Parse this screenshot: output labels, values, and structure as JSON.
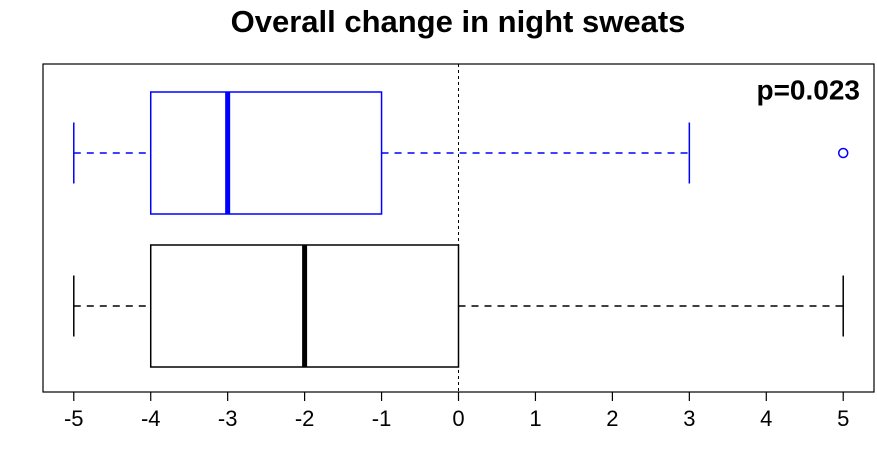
{
  "chart_data": {
    "type": "boxplot",
    "title": "Overall change in night sweats",
    "annotation": "p=0.023",
    "orientation": "horizontal",
    "boxes": [
      {
        "color": "#0000ff",
        "min": -5,
        "q1": -4,
        "median": -3,
        "q3": -1,
        "max": 3,
        "outliers": [
          5
        ]
      },
      {
        "color": "#000000",
        "min": -5,
        "q1": -4,
        "median": -2,
        "q3": 0,
        "max": 5,
        "outliers": []
      }
    ],
    "xlim": [
      -5.4,
      5.4
    ],
    "xticks": [
      -5,
      -4,
      -3,
      -2,
      -1,
      0,
      1,
      2,
      3,
      4,
      5
    ],
    "refline": 0
  }
}
